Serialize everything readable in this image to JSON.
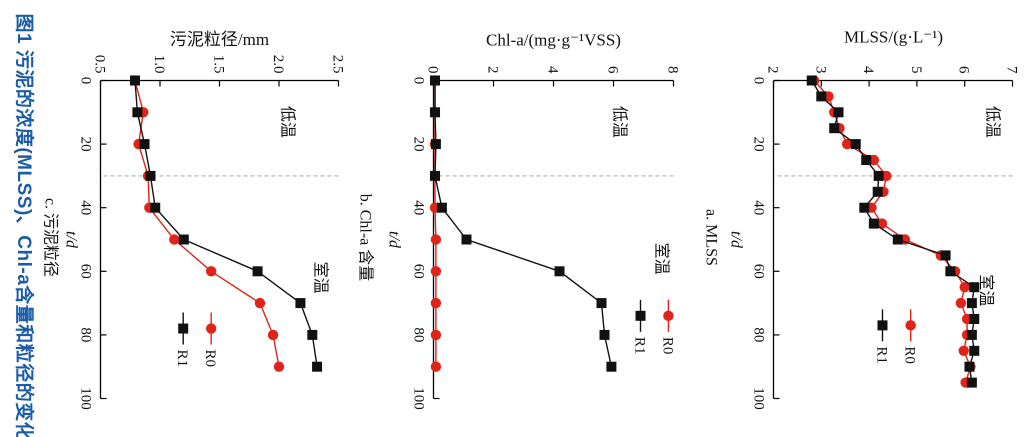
{
  "figure": {
    "caption": "图1 污泥的浓度(MLSS)、Chl-a含量和粒径的变化",
    "caption_color": "#1a5ca8",
    "background": "#ffffff",
    "orientation": "rotated-90-clockwise"
  },
  "chart_data": [
    {
      "id": "a",
      "type": "line",
      "sub_caption": "a. MLSS",
      "ylabel": "MLSS/(g·L⁻¹)",
      "xlabel": "t/d",
      "xlim": [
        0,
        100
      ],
      "xticks": [
        "0",
        "20",
        "40",
        "60",
        "80",
        "100"
      ],
      "ylim": [
        2,
        7
      ],
      "yticks": [
        "2",
        "3",
        "4",
        "5",
        "6",
        "7"
      ],
      "grid": false,
      "vline_x": 30,
      "vline_style": "dashed",
      "annotations": [
        {
          "label": "低温",
          "t": 13,
          "v": 6.58
        },
        {
          "label": "室温",
          "t": 66,
          "v": 6.45
        }
      ],
      "legend": {
        "t": 77,
        "v": 4.87,
        "dv": 0.59,
        "position": "lower-right-inside"
      },
      "x": [
        0,
        5,
        10,
        15,
        20,
        25,
        30,
        35,
        40,
        45,
        50,
        55,
        60,
        65,
        70,
        75,
        80,
        85,
        90,
        95
      ],
      "series": [
        {
          "name": "R0",
          "color": "#e2231a",
          "marker": "circle",
          "values": [
            2.85,
            3.15,
            3.27,
            3.38,
            3.54,
            4.1,
            4.36,
            4.3,
            4.05,
            4.27,
            4.75,
            5.5,
            5.8,
            6.0,
            5.92,
            6.05,
            6.05,
            5.98,
            6.12,
            6.02
          ]
        },
        {
          "name": "R1",
          "color": "#111111",
          "marker": "square",
          "values": [
            2.8,
            3.0,
            3.36,
            3.27,
            3.72,
            3.94,
            4.2,
            4.18,
            3.9,
            4.1,
            4.6,
            5.6,
            5.7,
            6.2,
            6.15,
            6.2,
            6.15,
            6.2,
            6.1,
            6.15
          ]
        }
      ]
    },
    {
      "id": "b",
      "type": "line",
      "sub_caption": "b. Chl-a 含量",
      "ylabel": "Chl-a/(mg·g⁻¹VSS)",
      "xlabel": "t/d",
      "xlim": [
        0,
        100
      ],
      "xticks": [
        "0",
        "20",
        "40",
        "60",
        "80",
        "100"
      ],
      "ylim": [
        0,
        8
      ],
      "yticks": [
        "0",
        "2",
        "4",
        "6",
        "8"
      ],
      "grid": false,
      "vline_x": 30,
      "vline_style": "dashed",
      "annotations": [
        {
          "label": "低温",
          "t": 13,
          "v": 6.2
        },
        {
          "label": "室温",
          "t": 56,
          "v": 7.6
        }
      ],
      "legend": {
        "t": 74,
        "v": 7.83,
        "dv": 0.93,
        "position": "upper-right-inside"
      },
      "x": [
        0,
        10,
        20,
        30,
        40,
        50,
        60,
        70,
        80,
        90
      ],
      "series": [
        {
          "name": "R0",
          "color": "#e2231a",
          "marker": "circle",
          "values": [
            0.05,
            0.05,
            0.05,
            0.05,
            0.05,
            0.08,
            0.08,
            0.08,
            0.08,
            0.08
          ]
        },
        {
          "name": "R1",
          "color": "#111111",
          "marker": "square",
          "values": [
            0.05,
            0.05,
            0.08,
            0.05,
            0.28,
            1.1,
            4.2,
            5.6,
            5.7,
            5.93
          ]
        }
      ]
    },
    {
      "id": "c",
      "type": "line",
      "sub_caption": "c. 污泥粒径",
      "ylabel": "污泥粒径/mm",
      "xlabel": "t/d",
      "xlim": [
        0,
        100
      ],
      "xticks": [
        "0",
        "20",
        "40",
        "60",
        "80",
        "100"
      ],
      "ylim": [
        0.5,
        2.5
      ],
      "yticks": [
        "0.5",
        "1.0",
        "1.5",
        "2.0",
        "2.5"
      ],
      "grid": false,
      "vline_x": 30,
      "vline_style": "dashed",
      "annotations": [
        {
          "label": "低温",
          "t": 13,
          "v": 2.07
        },
        {
          "label": "室温",
          "t": 62,
          "v": 2.35
        }
      ],
      "legend": {
        "t": 78,
        "v": 1.43,
        "dv": 0.235,
        "position": "lower-right-inside"
      },
      "x": [
        0,
        10,
        20,
        30,
        40,
        50,
        60,
        70,
        80,
        90
      ],
      "series": [
        {
          "name": "R0",
          "color": "#e2231a",
          "marker": "circle",
          "values": [
            0.79,
            0.86,
            0.82,
            0.9,
            0.91,
            1.12,
            1.43,
            1.84,
            1.95,
            2.0
          ]
        },
        {
          "name": "R1",
          "color": "#111111",
          "marker": "square",
          "values": [
            0.79,
            0.81,
            0.87,
            0.92,
            0.96,
            1.2,
            1.82,
            2.18,
            2.28,
            2.32
          ]
        }
      ]
    }
  ]
}
